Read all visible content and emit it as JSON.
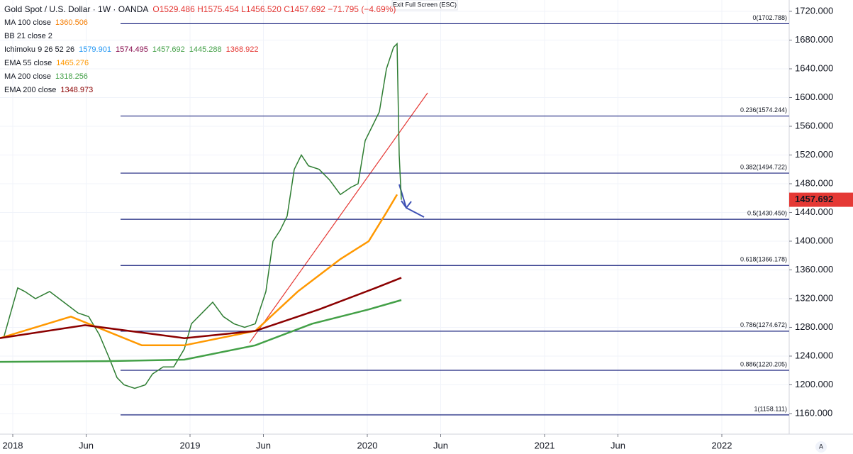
{
  "chart_data": {
    "type": "line",
    "header": {
      "title": "Gold Spot / U.S. Dollar · 1W · OANDA",
      "ohlc": "O1529.486 H1575.454 L1456.520 C1457.692 −71.795 (−4.69%)"
    },
    "notice": "Exit Full Screen (ESC)",
    "indicators": [
      {
        "name": "MA 100 close",
        "values": [
          1360.506
        ],
        "colors": [
          "#f57c00"
        ]
      },
      {
        "name": "BB 21 close 2",
        "values": [],
        "colors": []
      },
      {
        "name": "Ichimoku 9 26 52 26",
        "values": [
          1579.901,
          1574.495,
          1457.692,
          1445.288,
          1368.922
        ],
        "colors": [
          "#2196f3",
          "#880e4f",
          "#43a047",
          "#43a047",
          "#e53935"
        ]
      }
    ],
    "series": [
      {
        "name": "Price close",
        "color": "#2e7d32",
        "x": [
          2017.948,
          2017.988,
          2018.028,
          2018.068,
          2018.128,
          2018.208,
          2018.288,
          2018.368,
          2018.428,
          2018.488,
          2018.548,
          2018.588,
          2018.628,
          2018.688,
          2018.748,
          2018.788,
          2018.848,
          2018.908,
          2018.968,
          2019.008,
          2019.068,
          2019.128,
          2019.188,
          2019.248,
          2019.308,
          2019.368,
          2019.428,
          2019.468,
          2019.508,
          2019.548,
          2019.588,
          2019.628,
          2019.668,
          2019.728,
          2019.788,
          2019.848,
          2019.908,
          2019.948,
          2019.988,
          2020.028,
          2020.068,
          2020.108,
          2020.148,
          2020.168,
          2020.18,
          2020.192
        ],
        "values": [
          1265,
          1300,
          1335,
          1330,
          1320,
          1330,
          1315,
          1300,
          1295,
          1270,
          1235,
          1210,
          1200,
          1195,
          1200,
          1215,
          1225,
          1225,
          1250,
          1285,
          1300,
          1315,
          1295,
          1285,
          1280,
          1285,
          1330,
          1400,
          1415,
          1435,
          1500,
          1520,
          1505,
          1500,
          1485,
          1465,
          1475,
          1480,
          1540,
          1560,
          1580,
          1640,
          1670,
          1675,
          1520,
          1457.692
        ]
      },
      {
        "name": "EMA 55 close",
        "color": "#ff9800",
        "last_value": 1465.276,
        "x": [
          2017.928,
          2018.328,
          2018.728,
          2018.968,
          2019.368,
          2019.608,
          2019.848,
          2020.008,
          2020.108,
          2020.168
        ],
        "values": [
          1265,
          1295,
          1255,
          1255,
          1275,
          1330,
          1375,
          1400,
          1440,
          1465
        ]
      },
      {
        "name": "MA 200 close",
        "color": "#43a047",
        "last_value": 1318.256,
        "x": [
          2017.928,
          2018.528,
          2018.968,
          2019.368,
          2019.688,
          2020.008,
          2020.192
        ],
        "values": [
          1232,
          1233,
          1235,
          1255,
          1285,
          1305,
          1318
        ]
      },
      {
        "name": "EMA 200 close",
        "color": "#8b0000",
        "last_value": 1348.973,
        "x": [
          2017.928,
          2018.408,
          2018.968,
          2019.368,
          2019.728,
          2020.048,
          2020.192
        ],
        "values": [
          1265,
          1283,
          1265,
          1275,
          1305,
          1335,
          1349
        ]
      }
    ],
    "fib_levels": [
      {
        "value": 1702.788,
        "label": "0(1702.788)"
      },
      {
        "value": 1574.244,
        "label": "0.236(1574.244)"
      },
      {
        "value": 1494.722,
        "label": "0.382(1494.722)"
      },
      {
        "value": 1430.45,
        "label": "0.5(1430.450)"
      },
      {
        "value": 1366.178,
        "label": "0.618(1366.178)"
      },
      {
        "value": 1274.672,
        "label": "0.786(1274.672)"
      },
      {
        "value": 1220.205,
        "label": "0.886(1220.205)"
      },
      {
        "value": 1158.111,
        "label": "1(1158.111)"
      }
    ],
    "fib_start": 2018.608,
    "last_price": 1457.692,
    "xlim": [
      2017.928,
      2022.38
    ],
    "ylim": [
      1133.3,
      1735.8
    ],
    "xticks": [
      {
        "value": 2018,
        "label": "2018"
      },
      {
        "value": 2018.414,
        "label": "Jun"
      },
      {
        "value": 2019,
        "label": "2019"
      },
      {
        "value": 2019.414,
        "label": "Jun"
      },
      {
        "value": 2020,
        "label": "2020"
      },
      {
        "value": 2020.414,
        "label": "Jun"
      },
      {
        "value": 2021,
        "label": "2021"
      },
      {
        "value": 2021.414,
        "label": "Jun"
      },
      {
        "value": 2022,
        "label": "2022"
      }
    ],
    "yticks": [
      {
        "value": 1160,
        "label": "1160.000"
      },
      {
        "value": 1200,
        "label": "1200.000"
      },
      {
        "value": 1240,
        "label": "1240.000"
      },
      {
        "value": 1280,
        "label": "1280.000"
      },
      {
        "value": 1320,
        "label": "1320.000"
      },
      {
        "value": 1360,
        "label": "1360.000"
      },
      {
        "value": 1400,
        "label": "1400.000"
      },
      {
        "value": 1440,
        "label": "1440.000"
      },
      {
        "value": 1480,
        "label": "1480.000"
      },
      {
        "value": 1520,
        "label": "1520.000"
      },
      {
        "value": 1560,
        "label": "1560.000"
      },
      {
        "value": 1600,
        "label": "1600.000"
      },
      {
        "value": 1640,
        "label": "1640.000"
      },
      {
        "value": 1680,
        "label": "1680.000"
      },
      {
        "value": 1720,
        "label": "1720.000"
      }
    ],
    "grid": true
  }
}
